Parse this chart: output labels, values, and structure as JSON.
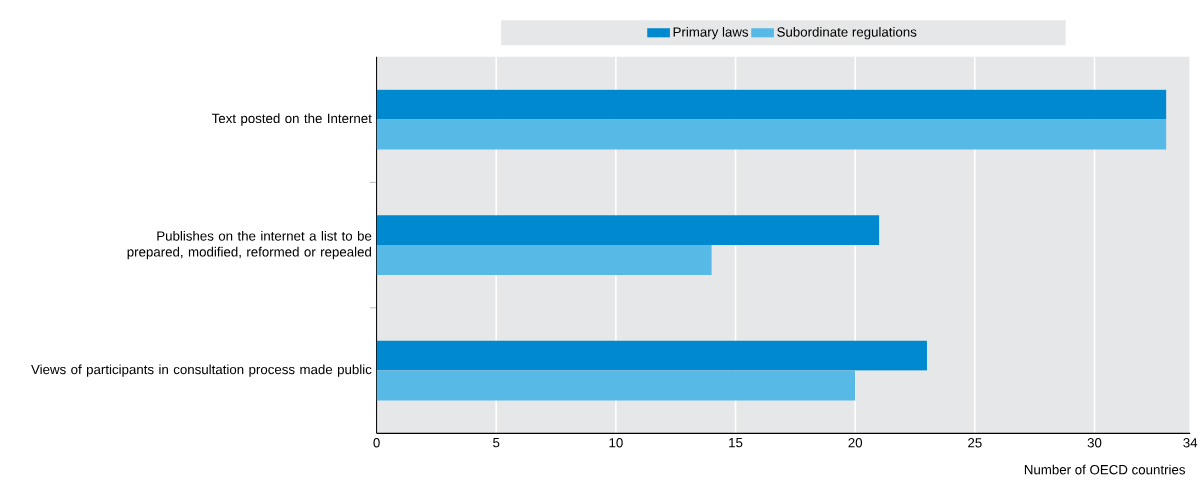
{
  "chart_data": {
    "type": "bar",
    "orientation": "horizontal",
    "categories": [
      "Text posted on the Internet",
      "Publishes on the internet a list to be prepared, modified, reformed or repealed",
      "Views of participants in consultation process made public"
    ],
    "series": [
      {
        "name": "Primary laws",
        "color": "#0089cf",
        "values": [
          33,
          21,
          23
        ]
      },
      {
        "name": "Subordinate regulations",
        "color": "#56b9e6",
        "values": [
          33,
          14,
          20
        ]
      }
    ],
    "xlabel": "Number of OECD countries",
    "xlim": [
      0,
      34
    ],
    "xticks": [
      0,
      5,
      10,
      15,
      20,
      25,
      30,
      34
    ],
    "grid": "x",
    "legend": "top"
  }
}
